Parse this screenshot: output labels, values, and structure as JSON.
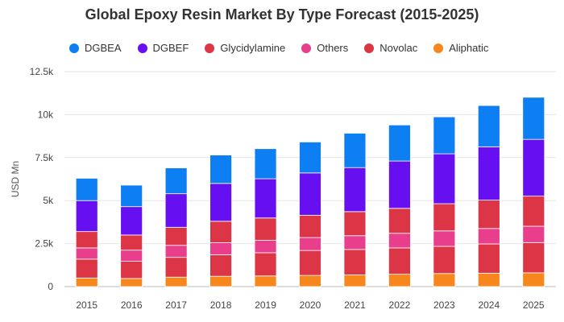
{
  "chart_data": {
    "type": "bar",
    "stacked": true,
    "title": "Global Epoxy Resin Market By Type Forecast (2015-2025)",
    "xlabel": "",
    "ylabel": "USD Mn",
    "ylim": [
      0,
      12500
    ],
    "yticks": [
      0,
      2500,
      5000,
      7500,
      10000,
      12500
    ],
    "ytick_labels": [
      "0",
      "2.5k",
      "5k",
      "7.5k",
      "10k",
      "12.5k"
    ],
    "grid": true,
    "legend_position": "top",
    "categories": [
      "2015",
      "2016",
      "2017",
      "2018",
      "2019",
      "2020",
      "2021",
      "2022",
      "2023",
      "2024",
      "2025"
    ],
    "series": [
      {
        "name": "Aliphatic",
        "color": "#f7861c",
        "values": [
          500,
          470,
          550,
          600,
          620,
          650,
          680,
          720,
          760,
          780,
          800
        ]
      },
      {
        "name": "Novolac",
        "color": "#dc3545",
        "values": [
          1100,
          1000,
          1150,
          1250,
          1350,
          1450,
          1480,
          1530,
          1580,
          1700,
          1760
        ]
      },
      {
        "name": "Others",
        "color": "#e83e8c",
        "values": [
          650,
          650,
          700,
          700,
          720,
          750,
          800,
          850,
          900,
          900,
          950
        ]
      },
      {
        "name": "Glycidylamine",
        "color": "#dc3545",
        "values": [
          950,
          880,
          1050,
          1250,
          1300,
          1300,
          1400,
          1450,
          1580,
          1650,
          1750
        ]
      },
      {
        "name": "DGBEF",
        "color": "#6610f2",
        "values": [
          1800,
          1650,
          1950,
          2200,
          2280,
          2460,
          2560,
          2750,
          2900,
          3100,
          3300
        ]
      },
      {
        "name": "DGBEA",
        "color": "#0d7ff2",
        "values": [
          1300,
          1250,
          1500,
          1650,
          1750,
          1800,
          2000,
          2100,
          2150,
          2400,
          2450
        ]
      }
    ],
    "legend_order": [
      "DGBEA",
      "DGBEF",
      "Glycidylamine",
      "Others",
      "Novolac",
      "Aliphatic"
    ]
  }
}
